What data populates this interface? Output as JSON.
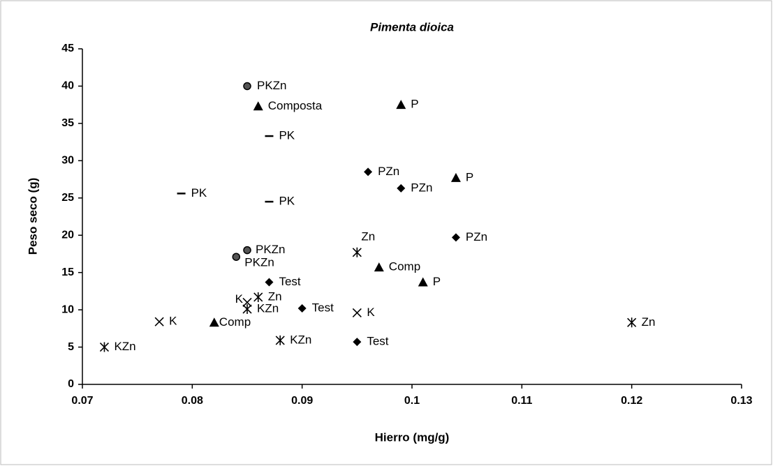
{
  "chart_data": {
    "type": "scatter",
    "title": "Pimenta dioica",
    "xlabel": "Hierro (mg/g)",
    "ylabel": "Peso seco (g)",
    "xlim": [
      0.07,
      0.13
    ],
    "xticks": [
      0.07,
      0.08,
      0.09,
      0.1,
      0.11,
      0.12,
      0.13
    ],
    "ylim": [
      0,
      45
    ],
    "yticks": [
      0,
      5,
      10,
      15,
      20,
      25,
      30,
      35,
      40,
      45
    ],
    "grid": false,
    "series": [
      {
        "marker": "circle",
        "color": "#000000",
        "x": [
          0.085,
          0.085,
          0.084
        ],
        "values": [
          40,
          18,
          17.1
        ],
        "labels": [
          "PKZn",
          "PKZn",
          "PKZn"
        ]
      },
      {
        "marker": "triangle",
        "color": "#000000",
        "x": [
          0.086,
          0.099,
          0.104,
          0.097,
          0.101,
          0.082
        ],
        "values": [
          37.3,
          37.5,
          27.7,
          15.7,
          13.7,
          8.3
        ],
        "labels": [
          "Composta",
          "P",
          "P",
          "Comp",
          "P",
          "Comp"
        ]
      },
      {
        "marker": "dash",
        "color": "#000000",
        "x": [
          0.087,
          0.079,
          0.087
        ],
        "values": [
          33.3,
          25.6,
          24.5
        ],
        "labels": [
          "PK",
          "PK",
          "PK"
        ]
      },
      {
        "marker": "diamond",
        "color": "#000000",
        "x": [
          0.096,
          0.099,
          0.104,
          0.087,
          0.09,
          0.095
        ],
        "values": [
          28.5,
          26.3,
          19.7,
          13.7,
          10.2,
          5.7
        ],
        "labels": [
          "PZn",
          "PZn",
          "PZn",
          "Test",
          "Test",
          "Test"
        ]
      },
      {
        "marker": "star",
        "color": "#000000",
        "x": [
          0.095,
          0.086,
          0.085,
          0.12,
          0.088,
          0.072
        ],
        "values": [
          17.7,
          11.7,
          10.1,
          8.3,
          5.9,
          5.0
        ],
        "labels": [
          "Zn",
          "Zn",
          "KZn",
          "Zn",
          "KZn",
          "KZn"
        ]
      },
      {
        "marker": "x",
        "color": "#000000",
        "x": [
          0.085,
          0.095,
          0.077
        ],
        "values": [
          11.0,
          9.6,
          8.4
        ],
        "labels": [
          "K",
          "K",
          "K"
        ]
      }
    ]
  }
}
